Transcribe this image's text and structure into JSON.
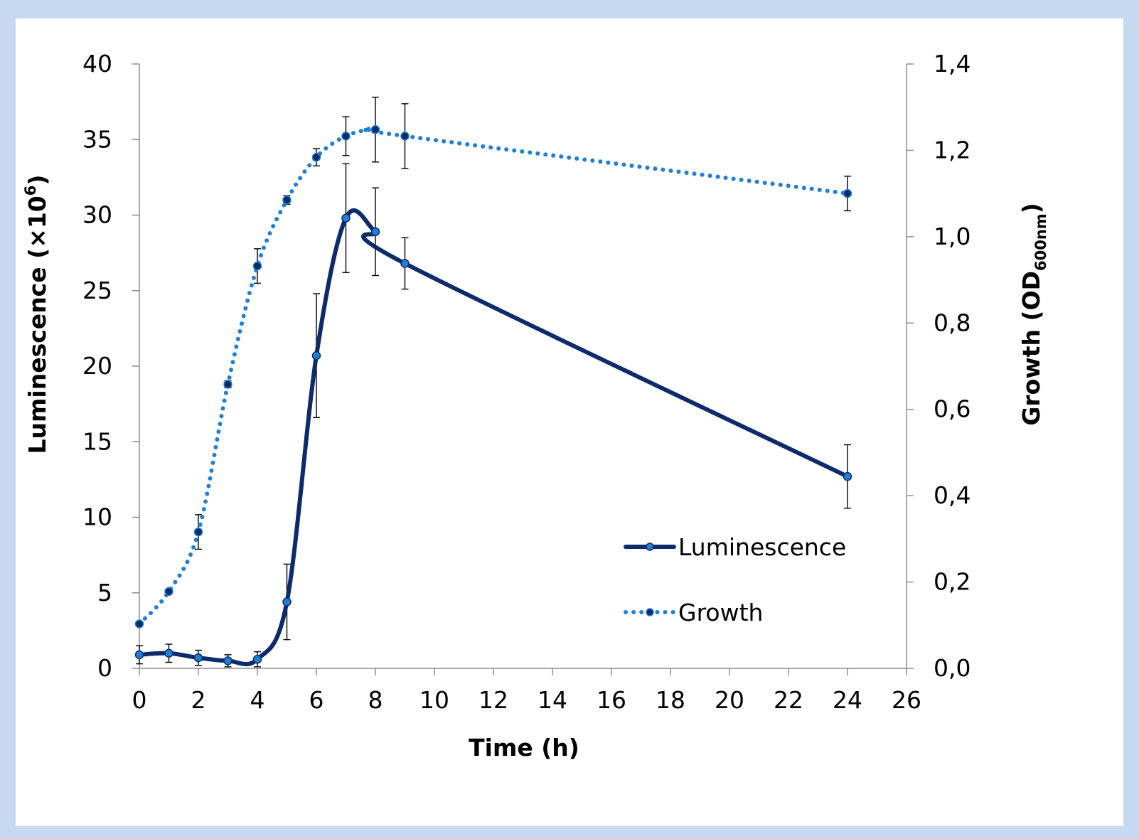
{
  "chart_data": {
    "type": "line",
    "xlabel": "Time (h)",
    "ylabel_left": {
      "main": "Luminescence (×10",
      "sup": "6",
      "end": ")"
    },
    "ylabel_right": {
      "main": "Growth (OD",
      "sub": "600nm",
      "end": ")"
    },
    "xlim": [
      0,
      26
    ],
    "ylim_left": [
      0,
      40
    ],
    "ylim_right": [
      0,
      1.4
    ],
    "x_ticks": [
      0,
      2,
      4,
      6,
      8,
      10,
      12,
      14,
      16,
      18,
      20,
      22,
      24,
      26
    ],
    "y_ticks_left": [
      "0",
      "5",
      "10",
      "15",
      "20",
      "25",
      "30",
      "35",
      "40"
    ],
    "y_ticks_right": [
      "0,0",
      "0,2",
      "0,4",
      "0,6",
      "0,8",
      "1,0",
      "1,2",
      "1,4"
    ],
    "grid": false,
    "legend_position": "lower-right inside plot",
    "series": [
      {
        "name": "Luminescence",
        "axis": "left",
        "style": "solid",
        "color": "#0d2a6b",
        "x": [
          0,
          1,
          2,
          3,
          4,
          5,
          6,
          7,
          8,
          9,
          24
        ],
        "y": [
          0.9,
          1.0,
          0.7,
          0.5,
          0.6,
          4.4,
          20.7,
          29.8,
          28.9,
          26.8,
          12.7
        ],
        "err": [
          0.6,
          0.6,
          0.5,
          0.4,
          0.5,
          2.5,
          4.1,
          3.6,
          2.9,
          1.7,
          2.1
        ]
      },
      {
        "name": "Growth",
        "axis": "right",
        "style": "dotted",
        "color": "#1f7fd1",
        "x": [
          0,
          1,
          2,
          3,
          4,
          5,
          6,
          7,
          8,
          9,
          24
        ],
        "y": [
          0.103,
          0.178,
          0.316,
          0.658,
          0.932,
          1.085,
          1.184,
          1.233,
          1.248,
          1.233,
          1.1
        ],
        "err": [
          0.005,
          0.005,
          0.04,
          0.008,
          0.04,
          0.01,
          0.02,
          0.045,
          0.075,
          0.075,
          0.04
        ]
      }
    ]
  }
}
